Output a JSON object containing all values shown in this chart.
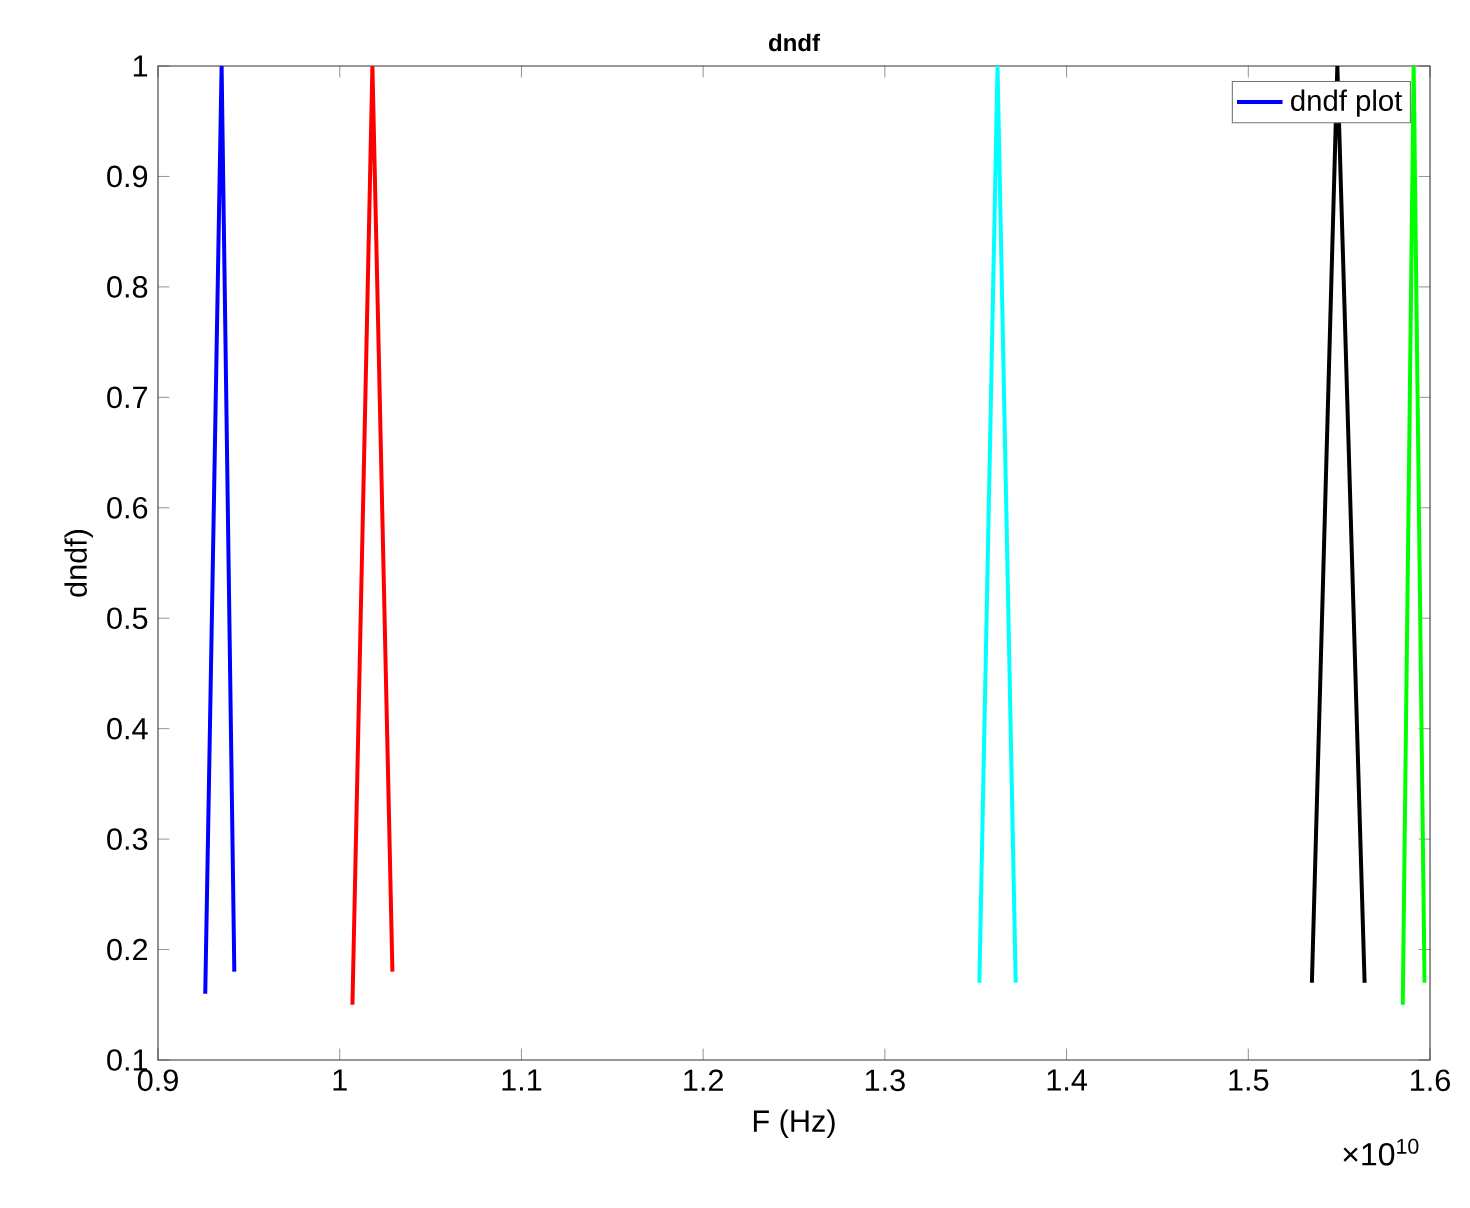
{
  "chart_data": {
    "type": "line",
    "title": "dndf",
    "xlabel": "F (Hz)",
    "ylabel": "dndf)",
    "xlim": [
      0.9,
      1.6
    ],
    "ylim": [
      0.1,
      1
    ],
    "xticks": [
      0.9,
      1,
      1.1,
      1.2,
      1.3,
      1.4,
      1.5,
      1.6
    ],
    "yticks": [
      0.1,
      0.2,
      0.3,
      0.4,
      0.5,
      0.6,
      0.7,
      0.8,
      0.9,
      1
    ],
    "annotations": [
      "×10$^{10}$"
    ],
    "legend": "top right",
    "marker": "none",
    "line_style": "solid",
    "series": [
      {
        "name": "dndf plot",
        "color": "#0000ff",
        "x": [
          0.926,
          0.935,
          0.942
        ],
        "values": [
          0.16,
          1,
          0.18
        ]
      },
      {
        "color": "#ff0000",
        "x": [
          1.007,
          1.018,
          1.029
        ],
        "values": [
          0.15,
          1,
          0.18
        ]
      },
      {
        "color": "#00ffff",
        "x": [
          1.352,
          1.362,
          1.372
        ],
        "values": [
          0.17,
          1,
          0.17
        ]
      },
      {
        "color": "#000000",
        "x": [
          1.535,
          1.549,
          1.564
        ],
        "values": [
          0.17,
          1,
          0.17
        ]
      },
      {
        "color": "#00ff00",
        "x": [
          1.585,
          1.591,
          1.597
        ],
        "values": [
          0.15,
          1,
          0.17
        ]
      }
    ]
  }
}
